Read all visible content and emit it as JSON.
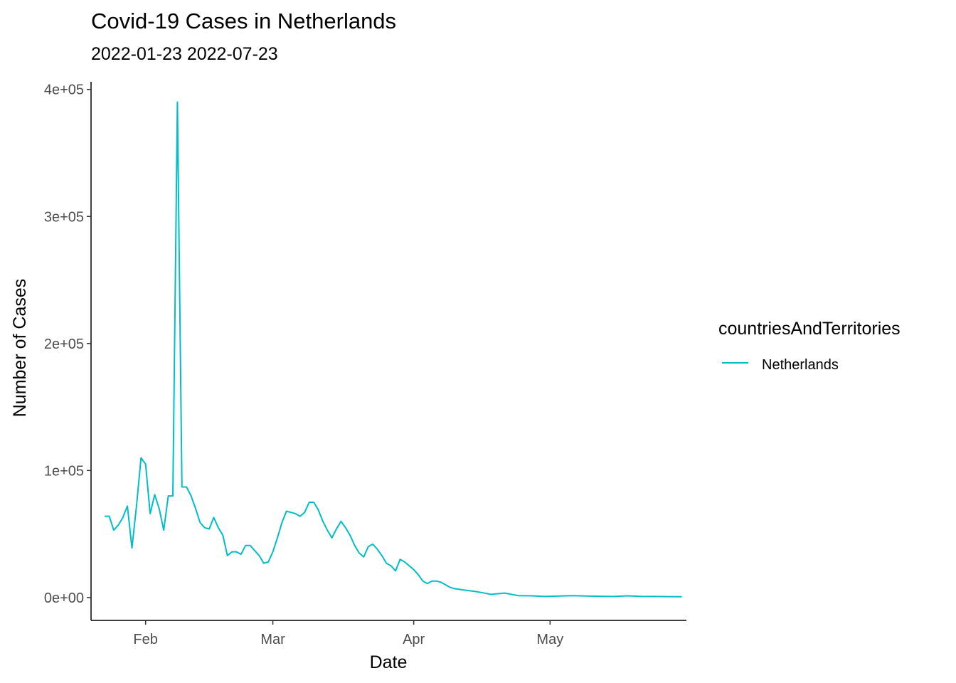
{
  "chart_data": {
    "type": "line",
    "title": "Covid-19 Cases in Netherlands",
    "subtitle": "2022-01-23 2022-07-23",
    "xlabel": "Date",
    "ylabel": "Number of Cases",
    "x_range": [
      "2022-01-20",
      "2022-05-31"
    ],
    "ylim": [
      -18000,
      406000
    ],
    "x_ticks": [
      {
        "date": "2022-02-01",
        "label": "Feb"
      },
      {
        "date": "2022-03-01",
        "label": "Mar"
      },
      {
        "date": "2022-04-01",
        "label": "Apr"
      },
      {
        "date": "2022-05-01",
        "label": "May"
      }
    ],
    "y_ticks": [
      {
        "value": 0,
        "label": "0e+00"
      },
      {
        "value": 100000,
        "label": "1e+05"
      },
      {
        "value": 200000,
        "label": "2e+05"
      },
      {
        "value": 300000,
        "label": "3e+05"
      },
      {
        "value": 400000,
        "label": "4e+05"
      }
    ],
    "grid": false,
    "legend": {
      "title": "countriesAndTerritories",
      "position": "right"
    },
    "series": [
      {
        "name": "Netherlands",
        "color": "#00BFC4",
        "x": [
          "2022-01-23",
          "2022-01-24",
          "2022-01-25",
          "2022-01-26",
          "2022-01-27",
          "2022-01-28",
          "2022-01-29",
          "2022-01-30",
          "2022-01-31",
          "2022-02-01",
          "2022-02-02",
          "2022-02-03",
          "2022-02-04",
          "2022-02-05",
          "2022-02-06",
          "2022-02-07",
          "2022-02-08",
          "2022-02-09",
          "2022-02-10",
          "2022-02-11",
          "2022-02-12",
          "2022-02-13",
          "2022-02-14",
          "2022-02-15",
          "2022-02-16",
          "2022-02-17",
          "2022-02-18",
          "2022-02-19",
          "2022-02-20",
          "2022-02-21",
          "2022-02-22",
          "2022-02-23",
          "2022-02-24",
          "2022-02-25",
          "2022-02-26",
          "2022-02-27",
          "2022-02-28",
          "2022-03-01",
          "2022-03-02",
          "2022-03-03",
          "2022-03-04",
          "2022-03-05",
          "2022-03-06",
          "2022-03-07",
          "2022-03-08",
          "2022-03-09",
          "2022-03-10",
          "2022-03-11",
          "2022-03-12",
          "2022-03-13",
          "2022-03-14",
          "2022-03-15",
          "2022-03-16",
          "2022-03-17",
          "2022-03-18",
          "2022-03-19",
          "2022-03-20",
          "2022-03-21",
          "2022-03-22",
          "2022-03-23",
          "2022-03-24",
          "2022-03-25",
          "2022-03-26",
          "2022-03-27",
          "2022-03-28",
          "2022-03-29",
          "2022-03-30",
          "2022-03-31",
          "2022-04-01",
          "2022-04-02",
          "2022-04-03",
          "2022-04-04",
          "2022-04-05",
          "2022-04-06",
          "2022-04-07",
          "2022-04-08",
          "2022-04-09",
          "2022-04-10",
          "2022-04-12",
          "2022-04-15",
          "2022-04-18",
          "2022-04-21",
          "2022-04-24",
          "2022-04-27",
          "2022-04-30",
          "2022-05-03",
          "2022-05-06",
          "2022-05-09",
          "2022-05-12",
          "2022-05-15",
          "2022-05-18",
          "2022-05-21",
          "2022-05-24",
          "2022-05-27",
          "2022-05-30"
        ],
        "values": [
          64000,
          64000,
          53000,
          57000,
          63000,
          72000,
          39000,
          72000,
          110000,
          105000,
          66000,
          81000,
          70000,
          53000,
          80000,
          80000,
          390000,
          87000,
          87000,
          80000,
          70000,
          59000,
          55000,
          54000,
          63000,
          55000,
          49000,
          33000,
          36000,
          36000,
          34000,
          41000,
          41000,
          37000,
          33000,
          27000,
          28000,
          36000,
          47000,
          59000,
          68000,
          67000,
          66000,
          64000,
          67000,
          75000,
          75000,
          69000,
          60000,
          53000,
          47000,
          54000,
          60000,
          55000,
          49000,
          41000,
          35000,
          32000,
          40000,
          42000,
          38000,
          33000,
          27000,
          25000,
          21000,
          30000,
          28000,
          25000,
          22000,
          18000,
          13000,
          11000,
          13000,
          13000,
          12000,
          10000,
          8000,
          7000,
          6000,
          4500,
          2500,
          3500,
          1500,
          1300,
          800,
          1200,
          1500,
          1200,
          1000,
          800,
          1300,
          900,
          800,
          700,
          600
        ]
      }
    ]
  }
}
